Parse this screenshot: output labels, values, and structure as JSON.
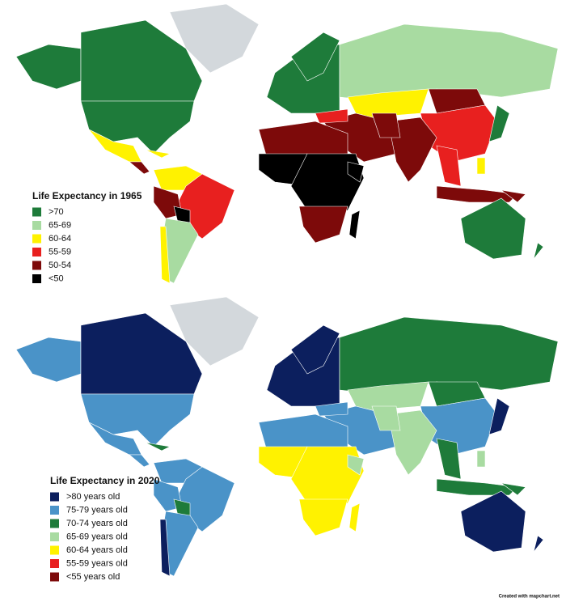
{
  "maps": [
    {
      "title": "Life Expectancy in 1965",
      "legend": [
        {
          "label": ">70",
          "color": "#1e7b3a"
        },
        {
          "label": "65-69",
          "color": "#a8dba1"
        },
        {
          "label": "60-64",
          "color": "#fff200"
        },
        {
          "label": "55-59",
          "color": "#e8201f"
        },
        {
          "label": "50-54",
          "color": "#7d0a0a"
        },
        {
          "label": "<50",
          "color": "#000000"
        }
      ]
    },
    {
      "title": "Life Expectancy in 2020",
      "legend": [
        {
          "label": ">80 years old",
          "color": "#0c1f5e"
        },
        {
          "label": "75-79 years old",
          "color": "#4a93c8"
        },
        {
          "label": "70-74 years old",
          "color": "#1e7b3a"
        },
        {
          "label": "65-69 years old",
          "color": "#a8dba1"
        },
        {
          "label": "60-64 years old",
          "color": "#fff200"
        },
        {
          "label": "55-59 years old",
          "color": "#e8201f"
        },
        {
          "label": "<55 years old",
          "color": "#7d0a0a"
        }
      ]
    }
  ],
  "credit": "Created with mapchart.net"
}
